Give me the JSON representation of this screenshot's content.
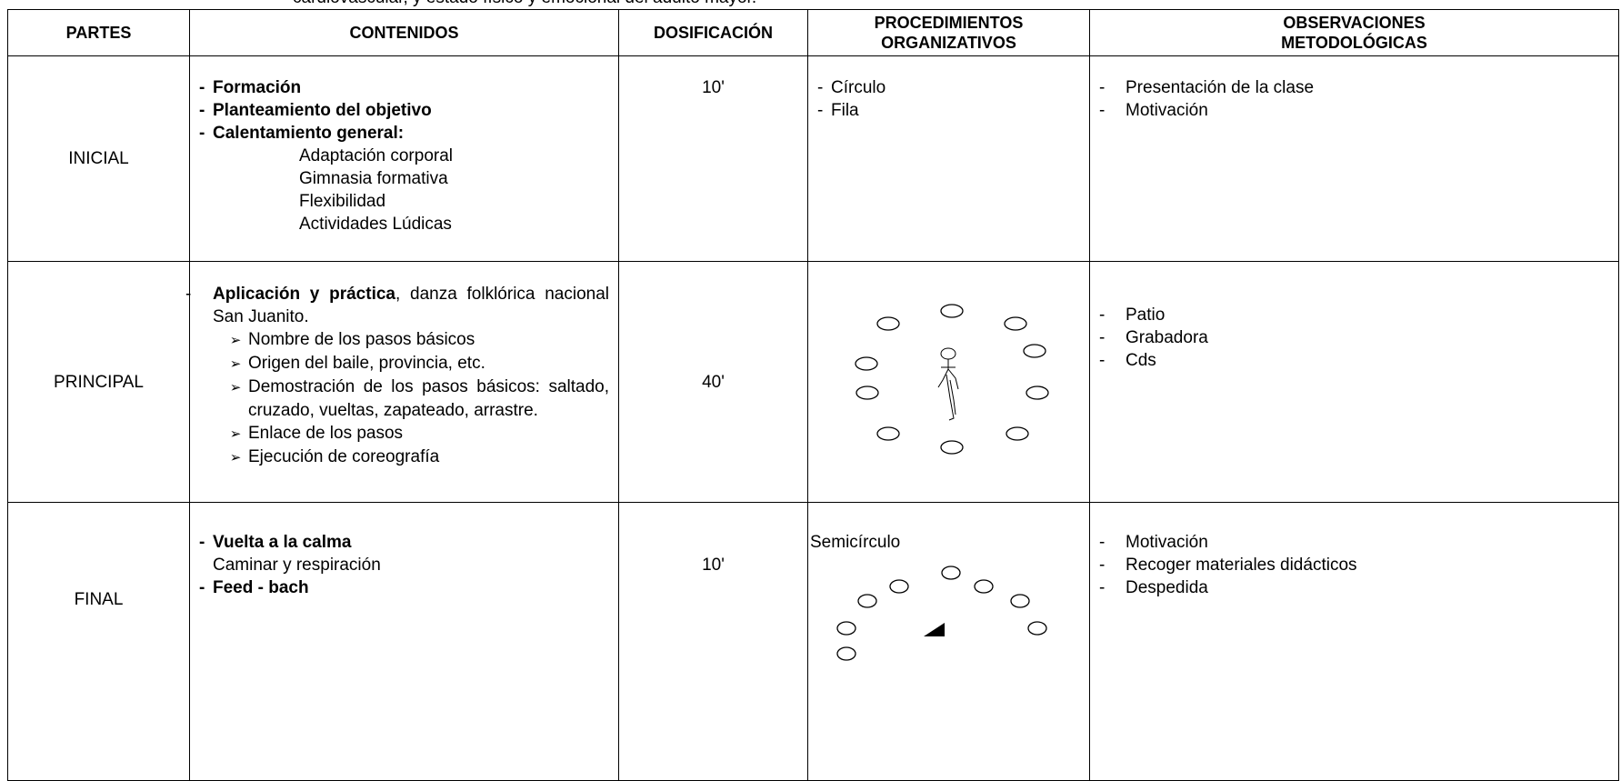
{
  "header_note": "cardiovascular, y estado físico y emocional del adulto mayor.",
  "table": {
    "headers": [
      [
        "PARTES"
      ],
      [
        "CONTENIDOS"
      ],
      [
        "DOSIFICACIÓN"
      ],
      [
        "PROCEDIMIENTOS",
        "ORGANIZATIVOS"
      ],
      [
        "OBSERVACIONES",
        "METODOLÓGICAS"
      ]
    ],
    "rows": [
      {
        "parte": "INICIAL",
        "contenidos": {
          "items": [
            "Formación",
            "Planteamiento del objetivo",
            "Calentamiento general:"
          ],
          "subitems": [
            "Adaptación corporal",
            "Gimnasia formativa",
            "Flexibilidad",
            "Actividades Lúdicas"
          ]
        },
        "dosificacion": "10'",
        "procedimientos": [
          "Círculo",
          "Fila"
        ],
        "observaciones": [
          "Presentación de la clase",
          "Motivación"
        ]
      },
      {
        "parte": "PRINCIPAL",
        "contenidos": {
          "lead_bold": "Aplicación y práctica",
          "lead_rest": ", danza folklórica nacional San Juanito.",
          "steps": [
            "Nombre de los pasos básicos",
            "Origen del baile, provincia, etc.",
            "Demostración de los pasos básicos: saltado, cruzado, vueltas, zapateado, arrastre.",
            "Enlace de los pasos",
            "Ejecución de coreografía"
          ]
        },
        "dosificacion": "40'",
        "observaciones": [
          "Patio",
          "Grabadora",
          "Cds"
        ]
      },
      {
        "parte": "FINAL",
        "contenidos": {
          "item1": "Vuelta a la calma",
          "plain": "Caminar y respiración",
          "item2": "Feed - bach"
        },
        "dosificacion": "10'",
        "procedimientos": "Semicírculo",
        "observaciones": [
          "Motivación",
          "Recoger materiales didácticos",
          "Despedida"
        ]
      }
    ]
  }
}
